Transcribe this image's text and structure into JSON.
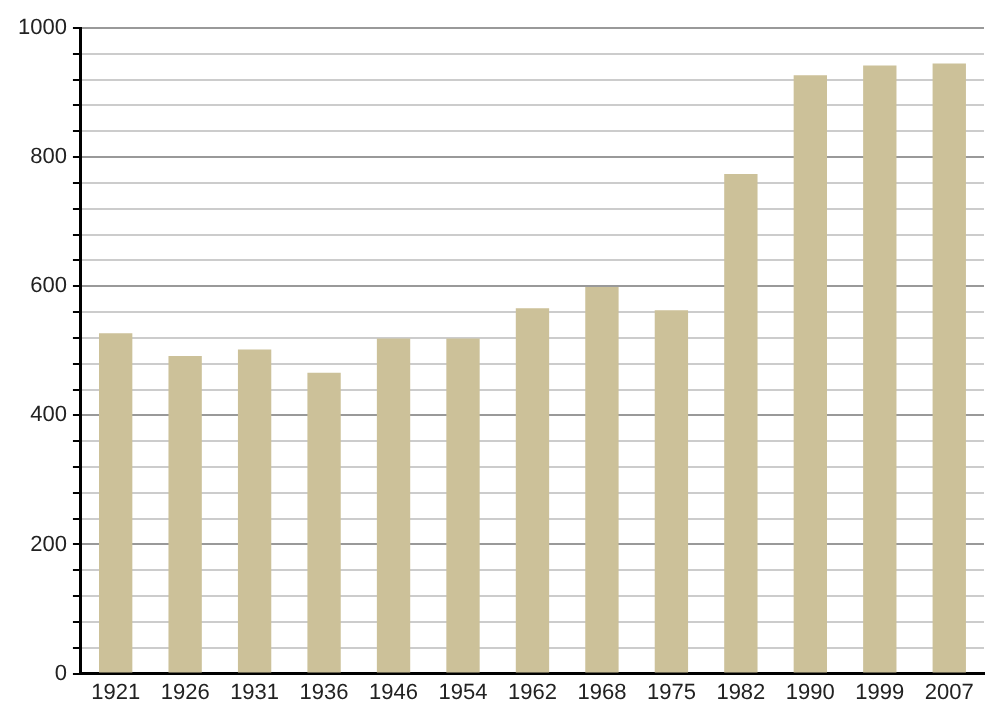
{
  "chart_data": {
    "type": "bar",
    "categories": [
      "1921",
      "1926",
      "1931",
      "1936",
      "1946",
      "1954",
      "1962",
      "1968",
      "1975",
      "1982",
      "1990",
      "1999",
      "2007"
    ],
    "values": [
      527,
      492,
      502,
      466,
      519,
      519,
      566,
      599,
      563,
      774,
      927,
      942,
      945
    ],
    "color": "#ccc199",
    "ylim": [
      0,
      1000
    ],
    "yticks": [
      0,
      {
        "value": 40,
        "label": null
      },
      {
        "value": 80,
        "label": null
      },
      {
        "value": 120,
        "label": null
      },
      {
        "value": 160,
        "label": null
      },
      200,
      {
        "value": 240,
        "label": null
      },
      {
        "value": 280,
        "label": null
      },
      {
        "value": 320,
        "label": null
      },
      {
        "value": 360,
        "label": null
      },
      400,
      {
        "value": 440,
        "label": null
      },
      {
        "value": 480,
        "label": null
      },
      {
        "value": 520,
        "label": null
      },
      {
        "value": 560,
        "label": null
      },
      600,
      {
        "value": 640,
        "label": null
      },
      {
        "value": 680,
        "label": null
      },
      {
        "value": 720,
        "label": null
      },
      {
        "value": 760,
        "label": null
      },
      800,
      {
        "value": 840,
        "label": null
      },
      {
        "value": 880,
        "label": null
      },
      {
        "value": 920,
        "label": null
      },
      {
        "value": 960,
        "label": null
      },
      1000
    ],
    "grid": "y"
  }
}
